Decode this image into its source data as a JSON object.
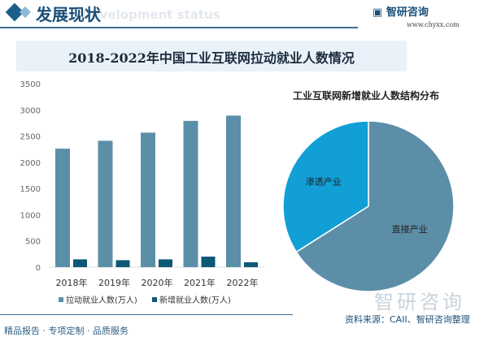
{
  "header": {
    "title": "发展现状",
    "subtitle": "Development status",
    "logo": "智研咨询",
    "url": "www.chyxx.com"
  },
  "colors": {
    "series1": "#5b8fa8",
    "series2": "#0e5877",
    "pie_penetration": "#119fd6",
    "pie_direct": "#5c8ea8"
  },
  "chart_data": [
    {
      "type": "bar",
      "title": "2018-2022年中国工业互联网拉动就业人数情况",
      "categories": [
        "2018年",
        "2019年",
        "2020年",
        "2021年",
        "2022年"
      ],
      "ylim": [
        0,
        3500
      ],
      "yticks": [
        0,
        500,
        1000,
        1500,
        2000,
        2500,
        3000,
        3500
      ],
      "grid": false,
      "legend": "bottom",
      "series": [
        {
          "name": "拉动就业人数(万人)",
          "values": [
            2260,
            2410,
            2565,
            2790,
            2890
          ]
        },
        {
          "name": "新增就业人数(万人)",
          "values": [
            149,
            133,
            149,
            201,
            93
          ]
        }
      ]
    },
    {
      "type": "pie",
      "title": "工业互联网新增就业人数结构分布",
      "slices": [
        {
          "label": "直接产业",
          "value": 66
        },
        {
          "label": "渗透产业",
          "value": 34
        }
      ]
    }
  ],
  "footer": {
    "slogan": "精品报告 · 专项定制 · 品质服务",
    "source": "资料来源：CAII、智研咨询整理",
    "watermark": "智研咨询"
  }
}
